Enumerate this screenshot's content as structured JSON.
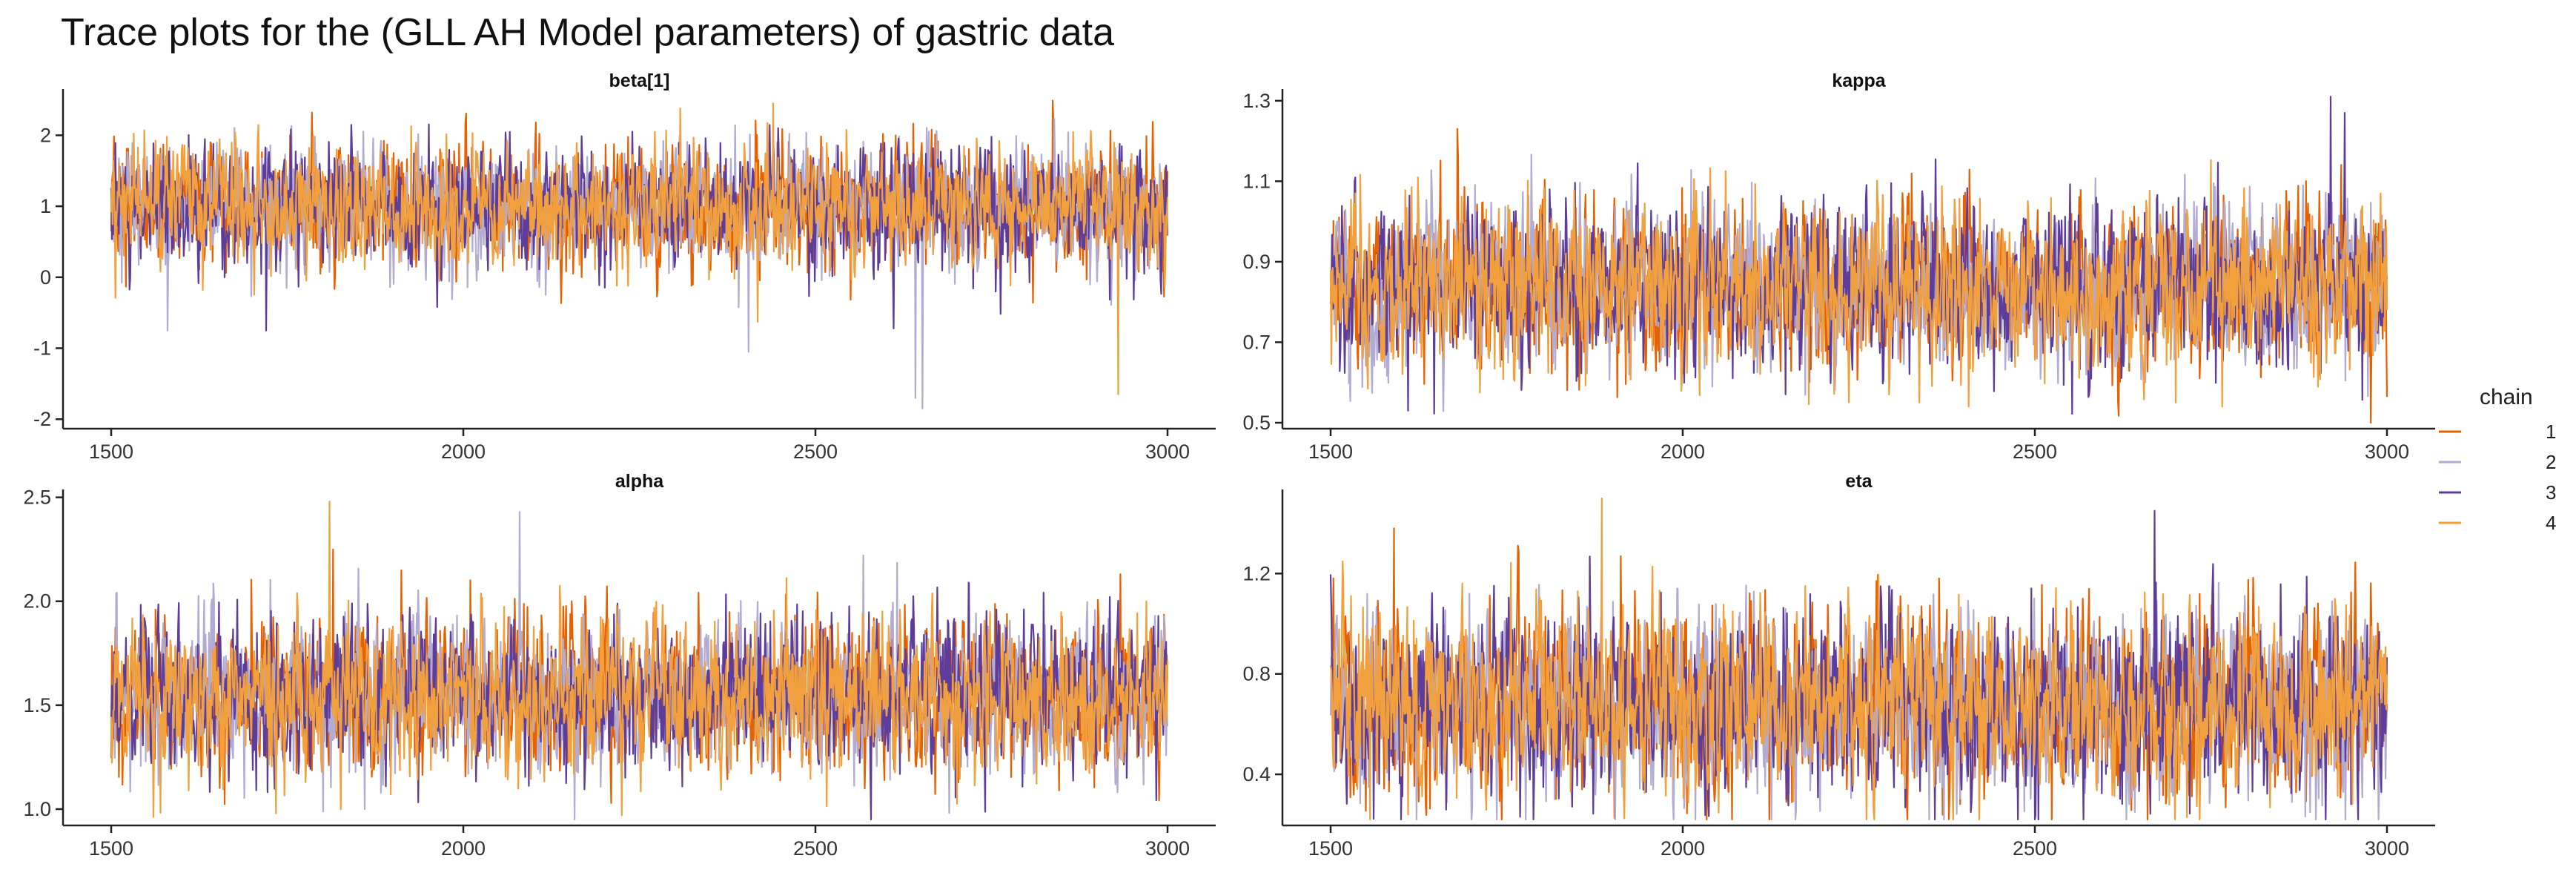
{
  "title": "Trace plots for the (GLL AH Model parameters) of gastric data",
  "colors": {
    "chain_1": "#e66101",
    "chain_2": "#b2abd2",
    "chain_3": "#5e3c99",
    "chain_4": "#f2a03d",
    "axis": "#222222",
    "text": "#111111",
    "background": "#ffffff"
  },
  "legend": {
    "title": "chain",
    "items": [
      {
        "label": "1",
        "color": "#e66101"
      },
      {
        "label": "2",
        "color": "#b2abd2"
      },
      {
        "label": "3",
        "color": "#5e3c99"
      },
      {
        "label": "4",
        "color": "#f2a03d"
      }
    ]
  },
  "chart_data": [
    {
      "type": "line",
      "title": "beta[1]",
      "x_range": [
        1500,
        3000
      ],
      "x_ticks": [
        1500,
        2000,
        2500,
        3000
      ],
      "x_tick_labels": [
        "1500",
        "2000",
        "2500",
        "3000"
      ],
      "ylim": [
        -2.05,
        2.6
      ],
      "y_ticks": [
        -2,
        -1,
        0,
        1,
        2
      ],
      "y_tick_labels": [
        "-2",
        "-1",
        "0",
        "1",
        "2"
      ],
      "series_summary": [
        {
          "name": "1",
          "mean": 1.0,
          "sd": 0.42
        },
        {
          "name": "2",
          "mean": 1.0,
          "sd": 0.42
        },
        {
          "name": "3",
          "mean": 1.0,
          "sd": 0.42
        },
        {
          "name": "4",
          "mean": 1.0,
          "sd": 0.42
        }
      ],
      "notable_values": [
        {
          "iteration": 2652,
          "value": -1.85,
          "chain": "2"
        },
        {
          "iteration": 2642,
          "value": -1.7,
          "chain": "2"
        },
        {
          "iteration": 2930,
          "value": -1.65,
          "chain": "4"
        },
        {
          "iteration": 1580,
          "value": -0.75,
          "chain": "2"
        },
        {
          "iteration": 1720,
          "value": -0.75,
          "chain": "3"
        },
        {
          "iteration": 2405,
          "value": -1.05,
          "chain": "2"
        },
        {
          "iteration": 2440,
          "value": 2.45,
          "chain": "4"
        },
        {
          "iteration": 2308,
          "value": 2.38,
          "chain": "4"
        }
      ]
    },
    {
      "type": "line",
      "title": "kappa",
      "x_range": [
        1500,
        3000
      ],
      "x_ticks": [
        1500,
        2000,
        2500,
        3000
      ],
      "x_tick_labels": [
        "1500",
        "2000",
        "2500",
        "3000"
      ],
      "ylim": [
        0.5,
        1.32
      ],
      "y_ticks": [
        0.5,
        0.7,
        0.9,
        1.1,
        1.3
      ],
      "y_tick_labels": [
        "0.5",
        "0.7",
        "0.9",
        "1.1",
        "1.3"
      ],
      "series_summary": [
        {
          "name": "1",
          "mean": 0.84,
          "sd": 0.1
        },
        {
          "name": "2",
          "mean": 0.84,
          "sd": 0.1
        },
        {
          "name": "3",
          "mean": 0.84,
          "sd": 0.1
        },
        {
          "name": "4",
          "mean": 0.84,
          "sd": 0.1
        }
      ],
      "notable_values": [
        {
          "iteration": 2920,
          "value": 1.31,
          "chain": "3"
        },
        {
          "iteration": 2940,
          "value": 1.27,
          "chain": "3"
        },
        {
          "iteration": 1680,
          "value": 1.23,
          "chain": "1"
        },
        {
          "iteration": 2700,
          "value": 0.55,
          "chain": "4"
        },
        {
          "iteration": 1610,
          "value": 0.53,
          "chain": "3"
        }
      ]
    },
    {
      "type": "line",
      "title": "alpha",
      "x_range": [
        1500,
        3000
      ],
      "x_ticks": [
        1500,
        2000,
        2500,
        3000
      ],
      "x_tick_labels": [
        "1500",
        "2000",
        "2500",
        "3000"
      ],
      "ylim": [
        0.95,
        2.52
      ],
      "y_ticks": [
        1.0,
        1.5,
        2.0,
        2.5
      ],
      "y_tick_labels": [
        "1.0",
        "1.5",
        "2.0",
        "2.5"
      ],
      "series_summary": [
        {
          "name": "1",
          "mean": 1.55,
          "sd": 0.18
        },
        {
          "name": "2",
          "mean": 1.55,
          "sd": 0.18
        },
        {
          "name": "3",
          "mean": 1.55,
          "sd": 0.18
        },
        {
          "name": "4",
          "mean": 1.55,
          "sd": 0.18
        }
      ],
      "notable_values": [
        {
          "iteration": 1810,
          "value": 2.48,
          "chain": "4"
        },
        {
          "iteration": 2080,
          "value": 2.43,
          "chain": "2"
        },
        {
          "iteration": 1815,
          "value": 2.25,
          "chain": "1"
        },
        {
          "iteration": 2225,
          "value": 0.97,
          "chain": "4"
        },
        {
          "iteration": 1860,
          "value": 1.0,
          "chain": "2"
        }
      ]
    },
    {
      "type": "line",
      "title": "eta",
      "x_range": [
        1500,
        3000
      ],
      "x_ticks": [
        1500,
        2000,
        2500,
        3000
      ],
      "x_tick_labels": [
        "1500",
        "2000",
        "2500",
        "3000"
      ],
      "ylim": [
        0.22,
        1.52
      ],
      "y_ticks": [
        0.4,
        0.8,
        1.2
      ],
      "y_tick_labels": [
        "0.4",
        "0.8",
        "1.2"
      ],
      "series_summary": [
        {
          "name": "1",
          "mean": 0.68,
          "sd": 0.18
        },
        {
          "name": "2",
          "mean": 0.68,
          "sd": 0.18
        },
        {
          "name": "3",
          "mean": 0.68,
          "sd": 0.18
        },
        {
          "name": "4",
          "mean": 0.68,
          "sd": 0.18
        }
      ],
      "notable_values": [
        {
          "iteration": 1885,
          "value": 1.5,
          "chain": "4"
        },
        {
          "iteration": 2670,
          "value": 1.45,
          "chain": "3"
        },
        {
          "iteration": 1590,
          "value": 1.38,
          "chain": "1"
        },
        {
          "iteration": 1610,
          "value": 0.24,
          "chain": "4"
        }
      ]
    }
  ]
}
